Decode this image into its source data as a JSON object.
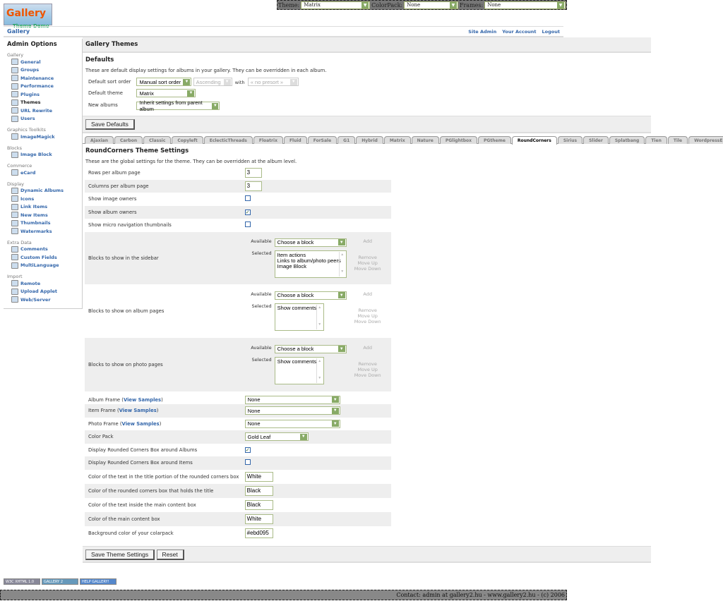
{
  "topbar": {
    "theme_label": "Theme:",
    "theme_value": "Matrix",
    "colorpack_label": "ColorPack:",
    "colorpack_value": "None",
    "frames_label": "Frames:",
    "frames_value": "None"
  },
  "logo": {
    "text": "Gallery",
    "subtext": "Theme Demo"
  },
  "header": {
    "title": "Gallery",
    "links": [
      "Site Admin",
      "Your Account",
      "Logout"
    ]
  },
  "sidebar": {
    "title": "Admin Options",
    "groups": [
      {
        "label": "Gallery",
        "items": [
          "General",
          "Groups",
          "Maintenance",
          "Performance",
          "Plugins",
          "Themes",
          "URL Rewrite",
          "Users"
        ]
      },
      {
        "label": "Graphics Toolkits",
        "items": [
          "ImageMagick"
        ]
      },
      {
        "label": "Blocks",
        "items": [
          "Image Block"
        ]
      },
      {
        "label": "Commerce",
        "items": [
          "eCard"
        ]
      },
      {
        "label": "Display",
        "items": [
          "Dynamic Albums",
          "Icons",
          "Link Items",
          "New Items",
          "Thumbnails",
          "Watermarks"
        ]
      },
      {
        "label": "Extra Data",
        "items": [
          "Comments",
          "Custom Fields",
          "MultiLanguage"
        ]
      },
      {
        "label": "Import",
        "items": [
          "Remote",
          "Upload Applet",
          "Web/Server"
        ]
      }
    ],
    "active": "Themes"
  },
  "main": {
    "title": "Gallery Themes",
    "defaults": {
      "heading": "Defaults",
      "description": "These are default display settings for albums in your gallery. They can be overridden in each album.",
      "sort_label": "Default sort order",
      "sort_value": "Manual sort order",
      "direction_value": "Ascending",
      "with_label": "with",
      "presort_value": "« no presort »",
      "theme_label": "Default theme",
      "theme_value": "Matrix",
      "new_albums_label": "New albums",
      "new_albums_value": "Inherit settings from parent album",
      "save_label": "Save Defaults"
    },
    "tabs": [
      "Ajaxian",
      "Carbon",
      "Classic",
      "Copyleft",
      "EclecticThreads",
      "Floatrix",
      "Fluid",
      "ForSale",
      "G1",
      "Hybrid",
      "Matrix",
      "Nature",
      "PGlightbox",
      "PGtheme",
      "RoundCorners",
      "Sirius",
      "Slider",
      "Splatbang",
      "Tien",
      "Tile",
      "WordpressEmbedded"
    ],
    "active_tab": "RoundCorners",
    "theme_settings": {
      "heading": "RoundCorners Theme Settings",
      "description": "These are the global settings for the theme. They can be overridden at the album level.",
      "rows_label": "Rows per album page",
      "rows_value": "3",
      "cols_label": "Columns per album page",
      "cols_value": "3",
      "image_owners_label": "Show image owners",
      "image_owners": false,
      "album_owners_label": "Show album owners",
      "album_owners": true,
      "micro_nav_label": "Show micro navigation thumbnails",
      "micro_nav": false,
      "blocks": {
        "available_label": "Available",
        "selected_label": "Selected",
        "choose": "Choose a block",
        "add": "Add",
        "remove": "Remove",
        "move_up": "Move Up",
        "move_down": "Move Down",
        "sidebar_label": "Blocks to show in the sidebar",
        "sidebar_selected": "Item actions\nLinks to album/photo peers\nImage Block",
        "album_label": "Blocks to show on album pages",
        "album_selected": "Show comments",
        "photo_label": "Blocks to show on photo pages",
        "photo_selected": "Show comments"
      },
      "view_samples": "View Samples",
      "album_frame_label": "Album Frame",
      "album_frame": "None",
      "item_frame_label": "Item Frame",
      "item_frame": "None",
      "photo_frame_label": "Photo Frame",
      "photo_frame": "None",
      "color_pack_label": "Color Pack",
      "color_pack": "Gold Leaf",
      "rc_albums_label": "Display Rounded Corners Box around Albums",
      "rc_albums": true,
      "rc_items_label": "Display Rounded Corners Box around Items",
      "rc_items": false,
      "title_text_color_label": "Color of the text in the title portion of the rounded corners box",
      "title_text_color": "White",
      "title_box_color_label": "Color of the rounded corners box that holds the title",
      "title_box_color": "Black",
      "main_text_color_label": "Color of the text inside the main content box",
      "main_text_color": "Black",
      "main_box_color_label": "Color of the main content box",
      "main_box_color": "White",
      "bg_color_label": "Background color of your colarpack",
      "bg_color": "#ebd095",
      "save_label": "Save Theme Settings",
      "reset_label": "Reset"
    }
  },
  "badges": [
    "W3C XHTML 1.0",
    "GALLERY 2",
    "HELP GALLERY!"
  ],
  "footer": "Contact: admin at gallery2.hu - www.gallery2.hu - (c) 2006"
}
